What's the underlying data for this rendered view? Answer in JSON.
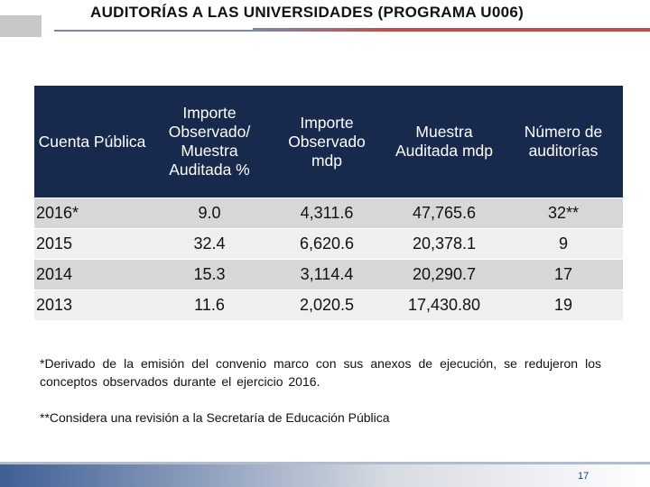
{
  "header": {
    "title": "AUDITORÍAS A LAS UNIVERSIDADES (PROGRAMA U006)"
  },
  "table": {
    "columns": [
      "Cuenta Pública",
      "Importe Observado/ Muestra Auditada %",
      "Importe Observado mdp",
      "Muestra Auditada mdp",
      "Número de auditorías"
    ],
    "rows": [
      [
        "2016*",
        "9.0",
        "4,311.6",
        "47,765.6",
        "32**"
      ],
      [
        "2015",
        "32.4",
        "6,620.6",
        "20,378.1",
        "9"
      ],
      [
        "2014",
        "15.3",
        "3,114.4",
        "20,290.7",
        "17"
      ],
      [
        "2013",
        "11.6",
        "2,020.5",
        "17,430.80",
        "19"
      ]
    ]
  },
  "notes": {
    "note1": "*Derivado de la emisión del convenio marco con sus anexos de ejecución, se redujeron los conceptos observados durante el ejercicio 2016.",
    "note2": "**Considera una revisión a la Secretaría de Educación Pública"
  },
  "footer": {
    "page_number": "17"
  }
}
